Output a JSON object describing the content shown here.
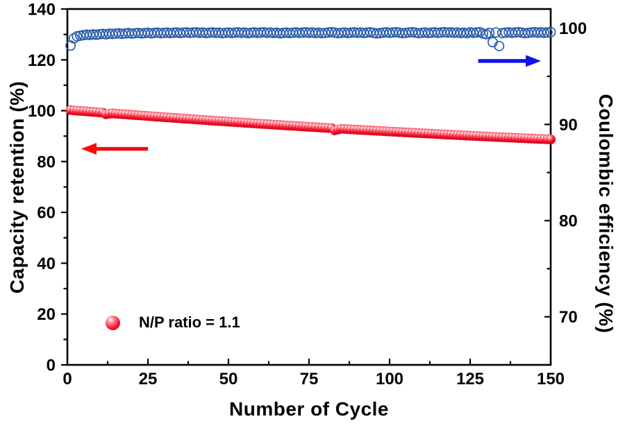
{
  "figure": {
    "background": "#ffffff"
  },
  "chart_data": {
    "type": "scatter",
    "title": "",
    "xlabel": "Number of Cycle",
    "ylabel_left": "Capacity retention (%)",
    "ylabel_right": "Coulombic efficiency (%)",
    "x_range": [
      0,
      150
    ],
    "x_major_ticks": [
      0,
      25,
      50,
      75,
      100,
      125,
      150
    ],
    "x_minor_ticks": [
      12.5,
      37.5,
      62.5,
      87.5,
      112.5,
      137.5
    ],
    "y_left_range": [
      0,
      140
    ],
    "y_left_major_ticks": [
      0,
      20,
      40,
      60,
      80,
      100,
      120,
      140
    ],
    "y_left_minor_ticks": [
      10,
      30,
      50,
      70,
      90,
      110,
      130
    ],
    "y_right_range": [
      65,
      102
    ],
    "y_right_major_ticks": [
      70,
      80,
      90,
      100
    ],
    "y_right_minor_ticks": [
      75,
      85,
      95
    ],
    "grid": false,
    "legend": {
      "label": "N/P ratio = 1.1",
      "marker": "red-sphere",
      "position": "lower-left"
    },
    "x_start": 1,
    "x_step": 1,
    "series": [
      {
        "name": "Capacity retention",
        "axis": "left",
        "marker": "sphere-filled",
        "color": "#f01228",
        "values": [
          100.2,
          100.1,
          100.0,
          99.9,
          99.8,
          99.71,
          99.61,
          99.51,
          99.41,
          99.32,
          99.22,
          98.57,
          98.78,
          98.93,
          98.83,
          98.74,
          98.64,
          98.55,
          98.45,
          98.36,
          98.27,
          98.17,
          98.08,
          97.99,
          97.89,
          97.8,
          97.71,
          97.62,
          97.53,
          97.44,
          97.34,
          97.25,
          97.16,
          97.07,
          96.98,
          96.89,
          96.81,
          96.72,
          96.63,
          96.54,
          96.45,
          96.36,
          96.28,
          96.19,
          96.1,
          96.02,
          95.93,
          95.85,
          95.76,
          95.68,
          95.59,
          95.51,
          95.42,
          95.34,
          95.25,
          95.17,
          95.09,
          95.0,
          94.92,
          94.84,
          94.76,
          94.68,
          94.6,
          94.51,
          94.43,
          94.35,
          94.27,
          94.19,
          94.11,
          94.04,
          93.96,
          93.88,
          93.8,
          93.72,
          93.64,
          93.57,
          93.49,
          93.41,
          93.34,
          93.26,
          93.18,
          93.11,
          92.28,
          92.61,
          92.88,
          92.81,
          92.74,
          92.66,
          92.59,
          92.52,
          92.44,
          92.37,
          92.3,
          92.23,
          92.15,
          92.08,
          92.01,
          91.94,
          91.87,
          91.8,
          91.73,
          91.66,
          91.59,
          91.52,
          91.45,
          91.39,
          91.32,
          91.25,
          91.18,
          91.12,
          91.05,
          90.98,
          90.92,
          90.85,
          90.79,
          90.72,
          90.66,
          90.59,
          90.53,
          90.46,
          90.4,
          90.34,
          90.27,
          90.21,
          90.15,
          90.09,
          90.02,
          89.96,
          89.9,
          89.84,
          89.78,
          89.72,
          89.66,
          89.6,
          89.54,
          89.48,
          89.43,
          89.37,
          89.31,
          89.25,
          89.2,
          89.14,
          89.08,
          89.03,
          88.97,
          88.92,
          88.86,
          88.81,
          88.75,
          88.7
        ]
      },
      {
        "name": "Coulombic efficiency",
        "axis": "right",
        "marker": "open-circle",
        "color": "#2a5caa",
        "values": [
          98.2,
          98.95,
          99.15,
          99.22,
          99.28,
          99.33,
          99.3,
          99.36,
          99.32,
          99.38,
          99.42,
          99.37,
          99.45,
          99.4,
          99.44,
          99.47,
          99.41,
          99.46,
          99.5,
          99.44,
          99.48,
          99.52,
          99.46,
          99.5,
          99.53,
          99.47,
          99.51,
          99.54,
          99.48,
          99.52,
          99.55,
          99.49,
          99.53,
          99.56,
          99.5,
          99.54,
          99.57,
          99.51,
          99.55,
          99.58,
          99.52,
          99.56,
          99.49,
          99.53,
          99.57,
          99.51,
          99.55,
          99.48,
          99.52,
          99.56,
          99.5,
          99.54,
          99.58,
          99.52,
          99.56,
          99.49,
          99.53,
          99.57,
          99.51,
          99.55,
          99.58,
          99.52,
          99.56,
          99.5,
          99.54,
          99.47,
          99.51,
          99.55,
          99.49,
          99.53,
          99.57,
          99.51,
          99.55,
          99.58,
          99.52,
          99.56,
          99.5,
          99.54,
          99.48,
          99.52,
          99.56,
          99.6,
          99.54,
          99.48,
          99.52,
          99.56,
          99.5,
          99.54,
          99.58,
          99.52,
          99.56,
          99.5,
          99.54,
          99.58,
          99.52,
          99.46,
          99.5,
          99.54,
          99.58,
          99.52,
          99.56,
          99.6,
          99.54,
          99.48,
          99.52,
          99.56,
          99.6,
          99.54,
          99.48,
          99.52,
          99.56,
          99.5,
          99.54,
          99.58,
          99.52,
          99.56,
          99.6,
          99.54,
          99.58,
          99.52,
          99.56,
          99.5,
          99.54,
          99.48,
          99.58,
          99.52,
          99.56,
          99.6,
          99.44,
          99.38,
          99.52,
          98.55,
          99.56,
          98.15,
          99.5,
          99.54,
          99.58,
          99.52,
          99.56,
          99.6,
          99.54,
          99.48,
          99.52,
          99.56,
          99.6,
          99.54,
          99.58,
          99.52,
          99.56,
          99.6
        ]
      }
    ],
    "annotations": [
      {
        "type": "arrow",
        "points_to": "left-axis",
        "axis": "left",
        "color": "#f50d0d",
        "x_from": 25,
        "x_to": 4.3,
        "y": 85.0
      },
      {
        "type": "arrow",
        "points_to": "right-axis",
        "axis": "right",
        "color": "#1212ed",
        "x_from": 127.5,
        "x_to": 147.0,
        "y": 96.6
      }
    ]
  }
}
